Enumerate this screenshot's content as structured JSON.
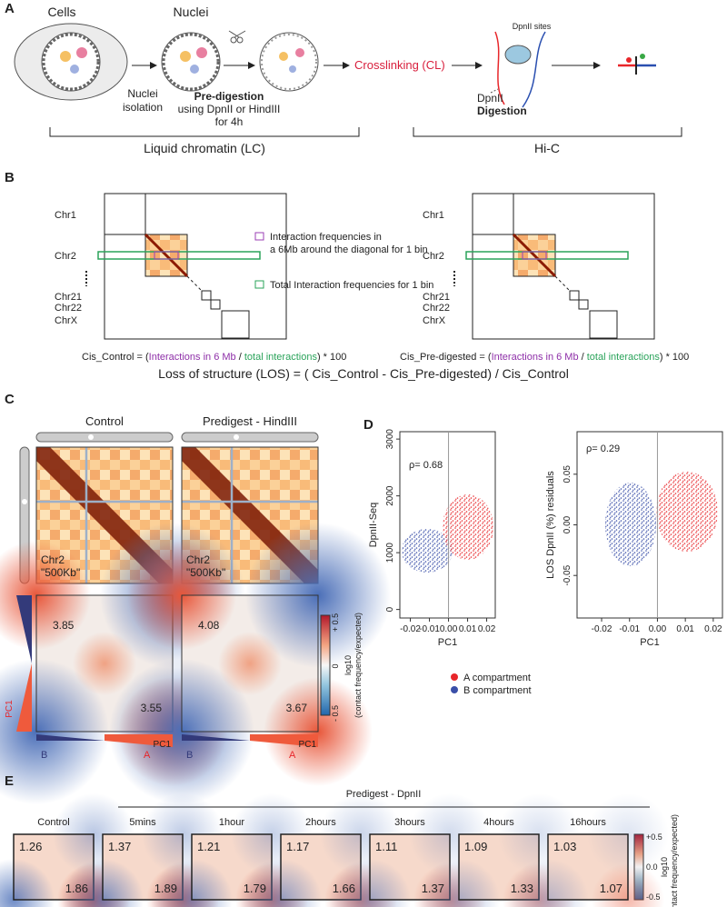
{
  "panel_a": {
    "label": "A",
    "cells": "Cells",
    "nuclei": "Nuclei",
    "isolation": [
      "Nuclei",
      "isolation"
    ],
    "predigestion": "Pre-digestion",
    "predigestion_detail": [
      "using DpnII or HindIII",
      "for 4h"
    ],
    "crosslinking": "Crosslinking (CL)",
    "dpnii_sites": "DpnII sites",
    "digestion": [
      "DpnII",
      "Digestion"
    ],
    "bracket_lc": "Liquid chromatin (LC)",
    "bracket_hic": "Hi-C"
  },
  "panel_b": {
    "label": "B",
    "chromosomes": [
      "Chr1",
      "Chr2",
      "Chr21",
      "Chr22",
      "ChrX"
    ],
    "legend": {
      "purple": [
        "Interaction frequencies in",
        "a 6Mb around the diagonal for 1 bin"
      ],
      "green": "Total Interaction frequencies for 1 bin"
    },
    "formula_control": [
      "Cis_Control  = (",
      "Interactions in 6 Mb",
      " / ",
      "total interactions",
      ") * 100"
    ],
    "formula_predigested": [
      "Cis_Pre-digested = (",
      "Interactions in 6 Mb",
      " / ",
      "total interactions",
      ") * 100"
    ],
    "los": "Loss of structure (LOS) = ( Cis_Control - Cis_Pre-digested) / Cis_Control"
  },
  "panel_c": {
    "label": "C",
    "heatmaps": [
      {
        "title": "Control",
        "chr": "Chr2",
        "resolution": "\"500Kb\"",
        "saddle_bb": 3.85,
        "saddle_aa": 3.55
      },
      {
        "title": "Predigest - HindIII",
        "chr": "Chr2",
        "resolution": "\"500Kb\"",
        "saddle_bb": 4.08,
        "saddle_aa": 3.67
      }
    ],
    "colorbar": {
      "ticks": [
        "+ 0.5",
        "0",
        "- 0.5"
      ],
      "label": [
        "log10",
        "(contact frequency/expected)"
      ]
    },
    "axis": "PC1",
    "b": "B",
    "a": "A"
  },
  "panel_d": {
    "label": "D",
    "plots": [
      {
        "ylabel": "DpnII-Seq",
        "xlabel": "PC1",
        "rho": "ρ= 0.68",
        "xlim": [
          -0.0255,
          0.0245
        ],
        "xticks": [
          -0.02,
          -0.01,
          {
            "value": 0,
            "label": "0.00"
          },
          0.01,
          0.02
        ],
        "ylim": [
          -150,
          3130
        ],
        "yticks": [
          0,
          1000,
          2000,
          3000
        ]
      },
      {
        "ylabel": "LOS DpnII (%) residuals",
        "xlabel": "PC1",
        "rho": "ρ= 0.29",
        "xlim": [
          -0.0288,
          0.0233
        ],
        "xticks": [
          -0.02,
          -0.01,
          {
            "value": 0,
            "label": "0.00"
          },
          0.01,
          0.02
        ],
        "ylim": [
          -0.092,
          0.092
        ],
        "yticks": [
          -0.05,
          {
            "value": 0,
            "label": "0.00"
          },
          0.05
        ]
      }
    ],
    "legend": [
      {
        "name": "A compartment",
        "color": "#e8262a"
      },
      {
        "name": "B compartment",
        "color": "#3a4fa8"
      }
    ]
  },
  "panel_e": {
    "label": "E",
    "group": "Predigest - DpnII",
    "samples": [
      {
        "name": "Control",
        "bb": 1.26,
        "aa": 1.86
      },
      {
        "name": "5mins",
        "bb": 1.37,
        "aa": 1.89
      },
      {
        "name": "1hour",
        "bb": 1.21,
        "aa": 1.79
      },
      {
        "name": "2hours",
        "bb": 1.17,
        "aa": 1.66
      },
      {
        "name": "3hours",
        "bb": 1.11,
        "aa": 1.37
      },
      {
        "name": "4hours",
        "bb": 1.09,
        "aa": 1.33
      },
      {
        "name": "16hours",
        "bb": 1.03,
        "aa": 1.07
      }
    ],
    "colorbar": {
      "ticks": [
        "+0.5",
        "0.0",
        "-0.5"
      ],
      "label": [
        "log10",
        "(contact frequency/expected)"
      ]
    }
  }
}
